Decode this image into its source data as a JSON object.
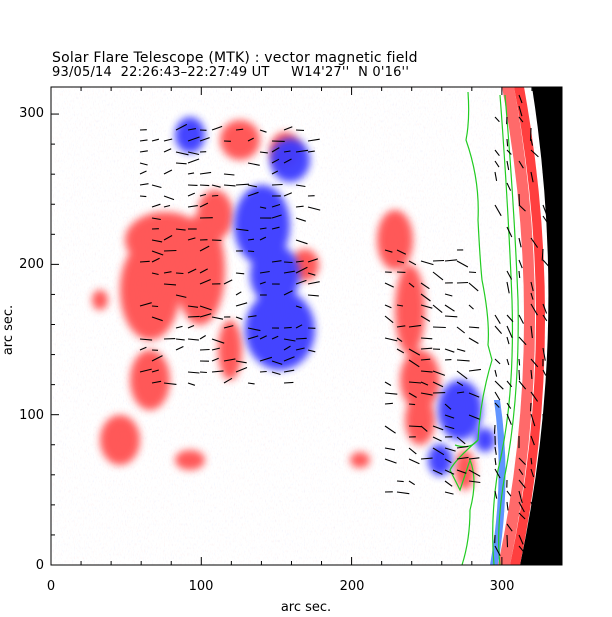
{
  "title": "Solar Flare Telescope (MTK) : vector magnetic field",
  "subtitle": "93/05/14  22:26:43–22:27:49 UT     W14'27''  N 0'16''",
  "axes": {
    "xlabel": "arc sec.",
    "ylabel": "arc sec.",
    "xlim": [
      0,
      340
    ],
    "ylim": [
      0,
      315
    ],
    "xticks": [
      "0",
      "100",
      "200",
      "300"
    ],
    "yticks": [
      "0",
      "100",
      "200",
      "300"
    ]
  },
  "colors": {
    "positive_polarity": "#ff3b3b",
    "negative_polarity": "#2f3bff",
    "neutral_line": "#22cc22",
    "vector_arrows": "#000000",
    "off_limb": "#000000"
  }
}
